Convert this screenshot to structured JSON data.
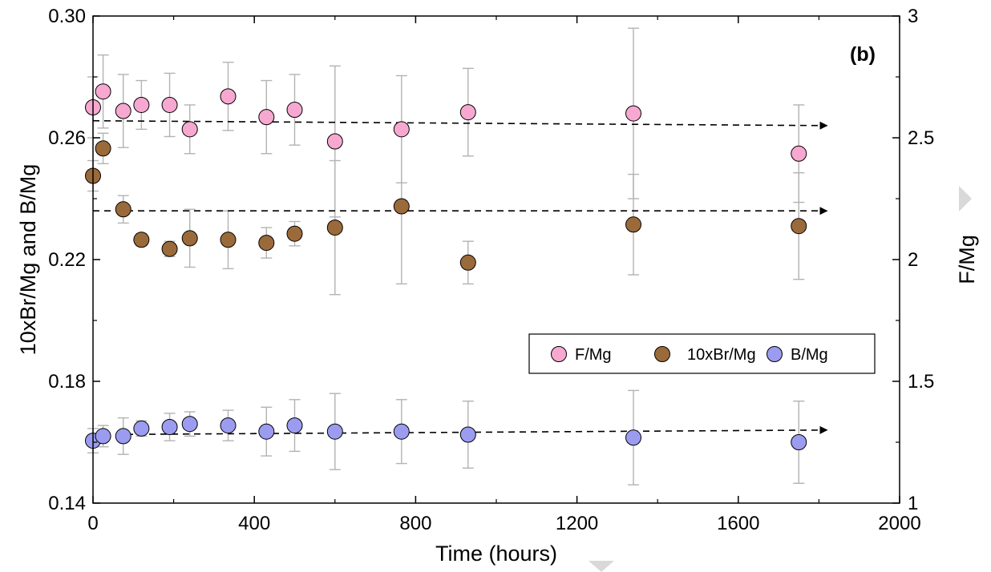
{
  "chart_data": {
    "type": "scatter",
    "panel_label": "(b)",
    "xlabel": "Time (hours)",
    "ylabel_left": "10xBr/Mg and B/Mg",
    "ylabel_right": "F/Mg",
    "xlim": [
      0,
      2000
    ],
    "ylim_left": [
      0.14,
      0.3
    ],
    "ylim_right": [
      1,
      3
    ],
    "x_ticks": [
      "0",
      "400",
      "800",
      "1200",
      "1600",
      "2000"
    ],
    "y_left_ticks": [
      "0.14",
      "0.18",
      "0.22",
      "0.26",
      "0.30"
    ],
    "y_right_ticks": [
      "1",
      "1.5",
      "2",
      "2.5",
      "3"
    ],
    "legend_position": "center-right",
    "grid": false,
    "series": [
      {
        "name": "F/Mg",
        "axis": "right",
        "color": "#f7a8d0",
        "points": [
          {
            "x": 0,
            "y": 2.625,
            "err": 0.125
          },
          {
            "x": 25,
            "y": 2.69,
            "err": 0.15
          },
          {
            "x": 75,
            "y": 2.61,
            "err": 0.15
          },
          {
            "x": 120,
            "y": 2.635,
            "err": 0.1
          },
          {
            "x": 190,
            "y": 2.635,
            "err": 0.13
          },
          {
            "x": 240,
            "y": 2.535,
            "err": 0.1
          },
          {
            "x": 335,
            "y": 2.67,
            "err": 0.14
          },
          {
            "x": 430,
            "y": 2.585,
            "err": 0.15
          },
          {
            "x": 500,
            "y": 2.615,
            "err": 0.145
          },
          {
            "x": 600,
            "y": 2.485,
            "err": 0.31
          },
          {
            "x": 765,
            "y": 2.535,
            "err": 0.22
          },
          {
            "x": 930,
            "y": 2.605,
            "err": 0.18
          },
          {
            "x": 1340,
            "y": 2.6,
            "err": 0.35
          },
          {
            "x": 1750,
            "y": 2.435,
            "err": 0.2
          }
        ],
        "trend": {
          "x": [
            0,
            1820
          ],
          "y": [
            2.57,
            2.55
          ]
        }
      },
      {
        "name": "10xBr/Mg",
        "axis": "left",
        "color": "#9b6a3a",
        "points": [
          {
            "x": 0,
            "y": 0.2475,
            "err": 0.005
          },
          {
            "x": 25,
            "y": 0.2565,
            "err": 0.005
          },
          {
            "x": 75,
            "y": 0.2365,
            "err": 0.0045
          },
          {
            "x": 120,
            "y": 0.2265,
            "err": 0.002
          },
          {
            "x": 190,
            "y": 0.2235,
            "err": 0.0025
          },
          {
            "x": 240,
            "y": 0.227,
            "err": 0.0095
          },
          {
            "x": 335,
            "y": 0.2265,
            "err": 0.0095
          },
          {
            "x": 430,
            "y": 0.2255,
            "err": 0.005
          },
          {
            "x": 500,
            "y": 0.2285,
            "err": 0.004
          },
          {
            "x": 600,
            "y": 0.2305,
            "err": 0.022
          },
          {
            "x": 765,
            "y": 0.2375,
            "err": 0.0255
          },
          {
            "x": 930,
            "y": 0.219,
            "err": 0.007
          },
          {
            "x": 1340,
            "y": 0.2315,
            "err": 0.0165
          },
          {
            "x": 1750,
            "y": 0.231,
            "err": 0.0175
          }
        ],
        "trend": {
          "x": [
            0,
            1820
          ],
          "y": [
            0.236,
            0.236
          ]
        }
      },
      {
        "name": "B/Mg",
        "axis": "left",
        "color": "#9b9cf0",
        "points": [
          {
            "x": 0,
            "y": 0.1605,
            "err": 0.004
          },
          {
            "x": 25,
            "y": 0.162,
            "err": 0.0035
          },
          {
            "x": 75,
            "y": 0.162,
            "err": 0.006
          },
          {
            "x": 120,
            "y": 0.1645,
            "err": 0.0025
          },
          {
            "x": 190,
            "y": 0.165,
            "err": 0.0045
          },
          {
            "x": 240,
            "y": 0.166,
            "err": 0.004
          },
          {
            "x": 335,
            "y": 0.1655,
            "err": 0.005
          },
          {
            "x": 430,
            "y": 0.1635,
            "err": 0.008
          },
          {
            "x": 500,
            "y": 0.1655,
            "err": 0.0085
          },
          {
            "x": 600,
            "y": 0.1635,
            "err": 0.0125
          },
          {
            "x": 765,
            "y": 0.1635,
            "err": 0.0105
          },
          {
            "x": 930,
            "y": 0.1625,
            "err": 0.011
          },
          {
            "x": 1340,
            "y": 0.1615,
            "err": 0.0155
          },
          {
            "x": 1750,
            "y": 0.16,
            "err": 0.0135
          }
        ],
        "trend": {
          "x": [
            0,
            1820
          ],
          "y": [
            0.1625,
            0.164
          ]
        }
      }
    ]
  }
}
